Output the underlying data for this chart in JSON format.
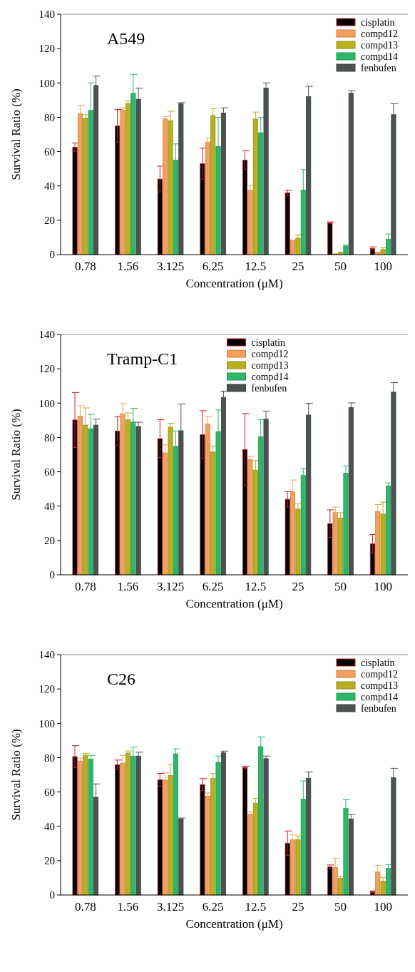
{
  "chart_data": [
    {
      "type": "bar",
      "title": "A549",
      "xlabel": "Concentration (μM)",
      "ylabel": "Survival Ratio (%)",
      "categories": [
        "0.78",
        "1.56",
        "3.125",
        "6.25",
        "12.5",
        "25",
        "50",
        "100"
      ],
      "ylim": [
        0,
        140
      ],
      "yticks": [
        0,
        20,
        40,
        60,
        80,
        100,
        120,
        140
      ],
      "legend": "top right",
      "series": [
        {
          "name": "cisplatin",
          "color": "#000000",
          "values": [
            62.5,
            75,
            44,
            53,
            55,
            36,
            18.5,
            3.5
          ],
          "errors": [
            2.5,
            9.5,
            7.5,
            9,
            5.5,
            1.5,
            0.5,
            1
          ]
        },
        {
          "name": "compd12",
          "color": "#f5a05a",
          "values": [
            82,
            84,
            79,
            65.5,
            37.5,
            8,
            0.5,
            1.5
          ],
          "errors": [
            5,
            1.5,
            1.5,
            2.5,
            3,
            0.5,
            null,
            null
          ]
        },
        {
          "name": "compd13",
          "color": "#b8b020",
          "values": [
            79.5,
            88,
            78,
            81,
            79,
            9.5,
            1.5,
            3
          ],
          "errors": [
            2,
            1.5,
            5.5,
            4,
            4,
            2,
            null,
            1
          ]
        },
        {
          "name": "compd14",
          "color": "#2cb868",
          "values": [
            84,
            94,
            55,
            63,
            71,
            37.5,
            5,
            9
          ],
          "errors": [
            16,
            11,
            9.5,
            17,
            9,
            12,
            0.5,
            3
          ]
        },
        {
          "name": "fenbufen",
          "color": "#4a5252",
          "values": [
            98.5,
            90.5,
            88,
            82.5,
            97,
            92,
            94,
            81.5
          ],
          "errors": [
            5.5,
            6.5,
            0.5,
            3,
            3,
            6,
            1.5,
            6.5
          ]
        }
      ]
    },
    {
      "type": "bar",
      "title": "Tramp-C1",
      "xlabel": "Concentration (μM)",
      "ylabel": "Survival Ratio (%)",
      "categories": [
        "0.78",
        "1.56",
        "3.125",
        "6.25",
        "12.5",
        "25",
        "50",
        "100"
      ],
      "ylim": [
        0,
        140
      ],
      "yticks": [
        0,
        20,
        40,
        60,
        80,
        100,
        120,
        140
      ],
      "legend": "top",
      "series": [
        {
          "name": "cisplatin",
          "color": "#000000",
          "values": [
            90.2,
            83.7,
            79.3,
            81.6,
            73,
            44,
            29.8,
            18
          ],
          "errors": [
            16,
            8.5,
            11,
            14,
            21,
            4.5,
            8,
            5.5
          ]
        },
        {
          "name": "compd12",
          "color": "#f5a05a",
          "values": [
            92.5,
            93.7,
            71,
            87.8,
            67,
            48.2,
            36.2,
            36.9
          ],
          "errors": [
            6,
            6,
            4.7,
            4.5,
            2,
            7,
            3.3,
            4
          ]
        },
        {
          "name": "compd13",
          "color": "#b8b020",
          "values": [
            87.2,
            90.3,
            86,
            71.5,
            61,
            38.3,
            33,
            35.3
          ],
          "errors": [
            10,
            4,
            2.2,
            3.5,
            5.5,
            3,
            3.2,
            7
          ]
        },
        {
          "name": "compd14",
          "color": "#2cb868",
          "values": [
            85.1,
            89,
            74.8,
            83.4,
            80.4,
            58,
            59.2,
            51.8
          ],
          "errors": [
            8.4,
            8,
            9,
            12.6,
            10,
            4,
            4.2,
            1.7
          ]
        },
        {
          "name": "fenbufen",
          "color": "#4a5252",
          "values": [
            87.2,
            86.4,
            83.9,
            103.3,
            90.6,
            93.1,
            97.4,
            106.4
          ],
          "errors": [
            3.5,
            2.5,
            15.6,
            3.7,
            4.7,
            6.8,
            2.7,
            5.6
          ]
        }
      ]
    },
    {
      "type": "bar",
      "title": "C26",
      "xlabel": "Concentration (μM)",
      "ylabel": "Survival Ratio (%)",
      "categories": [
        "0.78",
        "1.56",
        "3.125",
        "6.25",
        "12.5",
        "25",
        "50",
        "100"
      ],
      "ylim": [
        0,
        140
      ],
      "yticks": [
        0,
        20,
        40,
        60,
        80,
        100,
        120,
        140
      ],
      "legend": "top right",
      "series": [
        {
          "name": "cisplatin",
          "color": "#000000",
          "values": [
            80.6,
            75.9,
            67.1,
            64.3,
            74.3,
            30.2,
            16.3,
            1.9
          ],
          "errors": [
            6.4,
            2.7,
            3.7,
            3.5,
            0.7,
            7.1,
            1.2,
            0.5
          ]
        },
        {
          "name": "compd12",
          "color": "#f5a05a",
          "values": [
            78,
            76.8,
            66.9,
            57.5,
            47,
            32.1,
            16,
            13.4
          ],
          "errors": [
            1.7,
            4.5,
            4.3,
            2,
            1.8,
            2.9,
            5.3,
            3.8
          ]
        },
        {
          "name": "compd13",
          "color": "#b8b020",
          "values": [
            81.4,
            82.7,
            69.6,
            68,
            53.5,
            32.2,
            9.8,
            8
          ],
          "errors": [
            1.1,
            1.2,
            6.3,
            2.7,
            2.8,
            2.1,
            1,
            2.3
          ]
        },
        {
          "name": "compd14",
          "color": "#2cb868",
          "values": [
            79.2,
            80.9,
            82.2,
            77.3,
            86.4,
            55.8,
            50.4,
            15.5
          ],
          "errors": [
            2.1,
            5.3,
            2.9,
            3.6,
            5.7,
            10.6,
            5.1,
            2.2
          ]
        },
        {
          "name": "fenbufen",
          "color": "#4a5252",
          "values": [
            56.9,
            80.9,
            44.3,
            82.8,
            79.4,
            68,
            44.3,
            68.4
          ],
          "errors": [
            7.8,
            2.3,
            0.5,
            1,
            1.5,
            3.6,
            2.6,
            5.4
          ]
        }
      ]
    }
  ]
}
